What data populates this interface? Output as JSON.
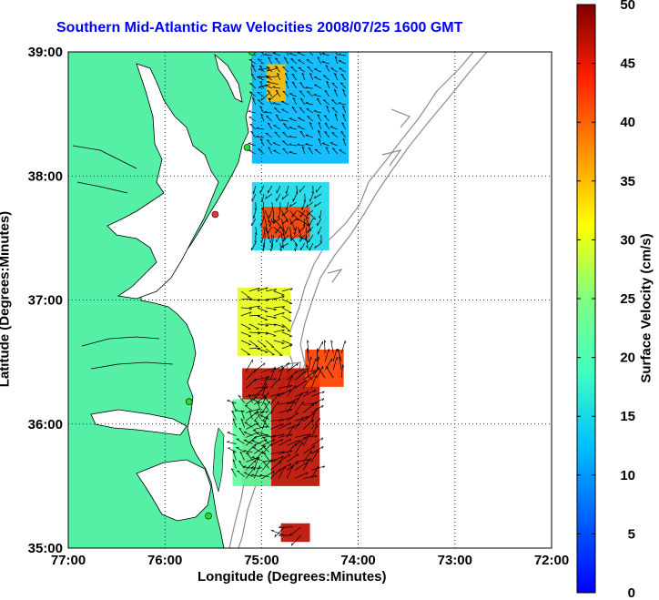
{
  "title": "Southern Mid-Atlantic Raw Velocities 2008/07/25 1600 GMT",
  "xlabel": "Longitude (Degrees:Minutes)",
  "ylabel": "Latitude (Degrees:Minutes)",
  "colorbar_label": "Surface Velocity (cm/s)",
  "x_ticks": [
    "77:00",
    "76:00",
    "75:00",
    "74:00",
    "73:00",
    "72:00"
  ],
  "y_ticks": [
    "39:00",
    "38:00",
    "37:00",
    "36:00",
    "35:00"
  ],
  "colorbar_ticks": [
    "50",
    "45",
    "40",
    "35",
    "30",
    "25",
    "20",
    "15",
    "10",
    "5",
    "0"
  ],
  "colors": {
    "land": "#55f0a5",
    "coast": "#000000",
    "bathymetry": "#8c8c8c",
    "title": "#0000ff",
    "station": "#22dd22",
    "station_alt": "#ee3333"
  },
  "chart_data": {
    "type": "heatmap",
    "title": "Southern Mid-Atlantic Raw Velocities 2008/07/25 1600 GMT",
    "xlabel": "Longitude (Degrees:Minutes)",
    "ylabel": "Latitude (Degrees:Minutes)",
    "xlim": [
      -77,
      -72
    ],
    "ylim": [
      35,
      39
    ],
    "clim": [
      0,
      50
    ],
    "colormap": "jet",
    "grid": true,
    "colorbar_position": "right",
    "colorbar_label": "Surface Velocity (cm/s)",
    "regions": [
      {
        "lon": [
          -75.1,
          -74.1
        ],
        "lat": [
          38.1,
          39.0
        ],
        "velocity": 12
      },
      {
        "lon": [
          -74.95,
          -74.75
        ],
        "lat": [
          38.6,
          38.9
        ],
        "velocity": 35
      },
      {
        "lon": [
          -75.1,
          -74.3
        ],
        "lat": [
          37.4,
          37.95
        ],
        "velocity": 15
      },
      {
        "lon": [
          -75.0,
          -74.5
        ],
        "lat": [
          37.5,
          37.75
        ],
        "velocity": 42
      },
      {
        "lon": [
          -75.25,
          -74.7
        ],
        "lat": [
          36.55,
          37.1
        ],
        "velocity": 30
      },
      {
        "lon": [
          -75.2,
          -74.4
        ],
        "lat": [
          35.5,
          36.45
        ],
        "velocity": 47
      },
      {
        "lon": [
          -74.55,
          -74.15
        ],
        "lat": [
          36.3,
          36.6
        ],
        "velocity": 42
      },
      {
        "lon": [
          -75.3,
          -74.9
        ],
        "lat": [
          35.5,
          36.2
        ],
        "velocity": 22
      },
      {
        "lon": [
          -74.8,
          -74.5
        ],
        "lat": [
          35.05,
          35.2
        ],
        "velocity": 47
      }
    ],
    "stations": [
      {
        "lon": -75.1,
        "lat": 39.0
      },
      {
        "lon": -75.15,
        "lat": 38.23
      },
      {
        "lon": -75.48,
        "lat": 37.69
      },
      {
        "lon": -75.75,
        "lat": 36.18
      },
      {
        "lon": -75.55,
        "lat": 35.26
      }
    ]
  }
}
